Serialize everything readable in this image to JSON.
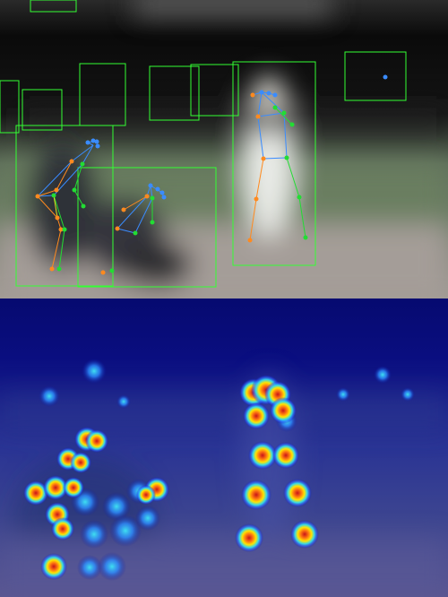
{
  "figure": {
    "top_panel": "pose-detection-overlay",
    "bottom_panel": "keypoint-heatmap-overlay"
  },
  "colors": {
    "box": "#33ff33",
    "left_limb": "#ff8a1f",
    "right_limb": "#22dd33",
    "head": "#3a8cff",
    "heat_hot": "#d21e1e",
    "heat_warm": "#ffe400",
    "heat_cool": "#27d7e8",
    "heat_bg": "#0a0e8c"
  }
}
